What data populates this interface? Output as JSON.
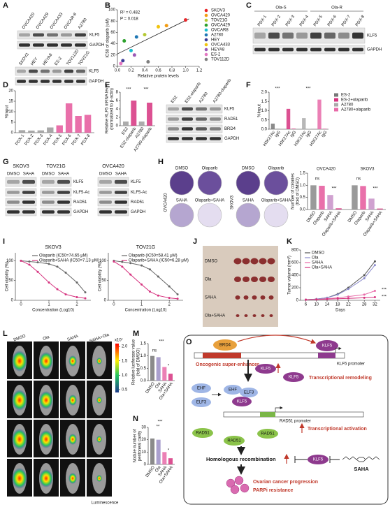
{
  "panels": {
    "A": {
      "label": "A",
      "blot1": {
        "lanes": [
          "OVCA420",
          "OVCA429",
          "OVCA433",
          "OVCAR-8",
          "A2780"
        ],
        "rows": [
          "KLF5",
          "GAPDH"
        ]
      },
      "blot2": {
        "lanes": [
          "SKOV3",
          "HEY",
          "HEYA8",
          "ES-2",
          "TOV112D",
          "TOV21G"
        ],
        "rows": [
          "KLF5",
          "GAPDH"
        ]
      }
    },
    "B": {
      "label": "B",
      "chart": {
        "type": "scatter",
        "ylabel": [
          "IC50 of olaparib (uM)"
        ],
        "xlabel": "Relative protein levels",
        "annotations": [
          "R² = 0.482",
          "P = 0.018"
        ],
        "xlim": [
          0,
          1.2
        ],
        "xticks": [
          {
            "value": 0,
            "label": "0.0"
          },
          0.2,
          0.4,
          0.6,
          0.8,
          {
            "value": 1,
            "label": "1.0"
          },
          1.2
        ],
        "ylim": [
          0,
          100
        ],
        "yticks": [
          0,
          20,
          40,
          60,
          80,
          100
        ],
        "legend": true,
        "trendline": {
          "x": [
            0,
            1.05
          ],
          "y": [
            22,
            84
          ]
        },
        "series": [
          {
            "name": "SKOV3",
            "color": "#e8262a",
            "x": 1.0,
            "y": 82
          },
          {
            "name": "OVCA420",
            "color": "#f39c12",
            "x": 0.72,
            "y": 72
          },
          {
            "name": "TOV21G",
            "color": "#b5c934",
            "x": 0.4,
            "y": 56
          },
          {
            "name": "OVCA429",
            "color": "#2ca02c",
            "x": 0.1,
            "y": 45
          },
          {
            "name": "OVCAR8",
            "color": "#17becf",
            "x": 0.2,
            "y": 28
          },
          {
            "name": "A2780",
            "color": "#1f77b4",
            "x": 0.28,
            "y": 52
          },
          {
            "name": "HEY",
            "color": "#3b3b98",
            "x": 0.08,
            "y": 10
          },
          {
            "name": "OVCA433",
            "color": "#f1c40f",
            "x": 0.6,
            "y": 70
          },
          {
            "name": "HEYA8",
            "color": "#9b59b6",
            "x": 0.25,
            "y": 20
          },
          {
            "name": "ES-2",
            "color": "#e377c2",
            "x": 0.05,
            "y": 5
          },
          {
            "name": "TOV112D",
            "color": "#7f7f7f",
            "x": 0.45,
            "y": 8
          }
        ]
      }
    },
    "C": {
      "label": "C",
      "groups": [
        "Ola-S",
        "Ola-R"
      ],
      "lanes": [
        "PDX-1",
        "PDX-2",
        "PDX-3",
        "PDX-4",
        "PDX-5",
        "PDX-6",
        "PDX-7",
        "PDX-8"
      ],
      "rows": [
        "KLF5",
        "GAPDH"
      ]
    },
    "D": {
      "label": "D",
      "chart": {
        "type": "bar",
        "ylabel": [
          "%Input"
        ],
        "categories": [
          "PDX-1",
          "PDX-2",
          "PDX-3",
          "PDX-4",
          "PDX-5",
          "PDX-6",
          "PDX-7",
          "PDX-8"
        ],
        "values": [
          1.2,
          1.0,
          1.1,
          2.5,
          3.5,
          14,
          8,
          8.5
        ],
        "colors": [
          "#999999",
          "#999999",
          "#999999",
          "#999999",
          "#e5579b",
          "#e5579b",
          "#e5579b",
          "#e5579b"
        ],
        "ylim": [
          0,
          20
        ],
        "yticks": [
          0,
          5,
          10,
          15,
          20
        ]
      }
    },
    "E": {
      "label": "E",
      "chart": {
        "type": "bar",
        "ylabel": [
          "Relative KLF5 mRNA level",
          "(normalized to β-actin)"
        ],
        "categories": [
          "ES2",
          "ES2-olaparib",
          "A2780",
          "A2780-olaparib"
        ],
        "values": [
          1,
          6,
          1,
          5.5
        ],
        "colors": [
          "#9e9e9e",
          "#d6337f",
          "#9e9e9e",
          "#d6337f"
        ],
        "ylim": [
          0,
          8
        ],
        "yticks": [
          0,
          2,
          4,
          6,
          8
        ],
        "annotations": [
          "***",
          "***"
        ]
      },
      "blot": {
        "lanes": [
          "ES2",
          "ES2-olaparib",
          "A2780",
          "A2780-olaparib"
        ],
        "rows": [
          "KLF5",
          "RAD51",
          "BRD4",
          "GAPDH"
        ]
      }
    },
    "F": {
      "label": "F",
      "chart": {
        "type": "bar",
        "legend": true,
        "ylabel": [
          "%Input"
        ],
        "categories": [
          "H3K27Ac",
          "IgG"
        ],
        "series": [
          {
            "name": "ES-2",
            "color": "#777777",
            "values": [
              0.3,
              0.02
            ]
          },
          {
            "name": "ES-2+olaparib",
            "color": "#d6337f",
            "values": [
              1.1,
              0.03
            ]
          },
          {
            "name": "A2780",
            "color": "#aaaaaa",
            "values": [
              0.6,
              0.02
            ]
          },
          {
            "name": "A2780+olaparib",
            "color": "#e86aa8",
            "values": [
              1.6,
              0.03
            ]
          }
        ],
        "ylim": [
          0,
          2
        ],
        "yticks": [
          {
            "value": 0,
            "label": "0.0"
          },
          0.5,
          {
            "value": 1,
            "label": "1.0"
          },
          1.5,
          {
            "value": 2,
            "label": "2.0"
          }
        ],
        "annotations": [
          "***",
          "***"
        ]
      }
    },
    "G": {
      "label": "G",
      "blots": [
        {
          "title": "SKOV3",
          "lanes": [
            "DMSO",
            "SAHA"
          ]
        },
        {
          "title": "TOV21G",
          "lanes": [
            "DMSO",
            "SAHA"
          ]
        },
        {
          "title": "OVCA420",
          "lanes": [
            "DMSO",
            "SAHA"
          ]
        }
      ],
      "rows": [
        "KLF5",
        "KLF5-Ac",
        "RAD51",
        "GAPDH"
      ]
    },
    "H": {
      "label": "H",
      "cell_lines": [
        "OVCA420",
        "SKOV3"
      ],
      "treatments": [
        "DMSO",
        "Olaparib",
        "SAHA",
        "Olaparib+SAHA"
      ],
      "chart": {
        "type": "bar",
        "ylabel": [
          "Number of colonies",
          "(fold of DMSO)"
        ],
        "categories": [
          "DMSO",
          "Olaparib",
          "SAHA",
          "Olaparib+SAHA"
        ],
        "series": [
          {
            "name": "OVCA420",
            "values": [
              1,
              0.98,
              0.6,
              0.05
            ]
          },
          {
            "name": "SKOV3",
            "values": [
              1,
              0.97,
              0.45,
              0.04
            ]
          }
        ],
        "colors": [
          "#888888",
          "#e5579b",
          "#c890c8",
          "#d6337f"
        ],
        "ylim": [
          0,
          1.5
        ],
        "yticks": [
          {
            "value": 0,
            "label": "0.0"
          },
          0.5,
          {
            "value": 1,
            "label": "1.0"
          },
          1.5
        ],
        "annotations": [
          "ns",
          "***",
          "ns",
          "***"
        ]
      }
    },
    "I": {
      "label": "I",
      "charts": [
        {
          "type": "line",
          "title": "SKOV3",
          "legend": true,
          "ylabel": [
            "Cell viability (%)"
          ],
          "xlabel": "Concentration (Log10)",
          "x": [
            0,
            0.3,
            0.6,
            1,
            1.3,
            1.6,
            2,
            2.3
          ],
          "xlim": [
            -0.2,
            2.5
          ],
          "xticks": [
            0,
            1,
            2
          ],
          "ylim": [
            0,
            120
          ],
          "yticks": [
            0,
            50,
            100
          ],
          "series": [
            {
              "name": "Olaparib (IC50=74.65 μM)",
              "color": "#666666",
              "values": [
                100,
                98,
                96,
                92,
                85,
                70,
                45,
                20
              ]
            },
            {
              "name": "Olaparib+SAHA (IC50=7.13 μM)",
              "color": "#d6337f",
              "values": [
                100,
                90,
                72,
                45,
                28,
                15,
                8,
                5
              ]
            }
          ]
        },
        {
          "type": "line",
          "title": "TOV21G",
          "legend": true,
          "ylabel": [
            "Cell viability (%)"
          ],
          "xlabel": "Concentration (Log10)",
          "x": [
            0,
            0.3,
            0.6,
            1,
            1.3,
            1.6,
            2,
            2.3
          ],
          "xlim": [
            -0.2,
            2.5
          ],
          "xticks": [
            0,
            1,
            2
          ],
          "ylim": [
            0,
            120
          ],
          "yticks": [
            0,
            50,
            100
          ],
          "series": [
            {
              "name": "Olaparib (IC50=58.41 μM)",
              "color": "#666666",
              "values": [
                100,
                97,
                94,
                88,
                78,
                60,
                35,
                15
              ]
            },
            {
              "name": "Olaparib+SAHA (IC50=6.28 μM)",
              "color": "#d6337f",
              "values": [
                98,
                85,
                65,
                40,
                22,
                12,
                6,
                4
              ]
            }
          ]
        }
      ]
    },
    "J": {
      "label": "J",
      "groups": [
        "DMSO",
        "Ola",
        "SAHA",
        "Ola+SAHA"
      ]
    },
    "K": {
      "label": "K",
      "chart": {
        "type": "line",
        "legend": true,
        "ylabel": [
          "Tumor volume (mm³)"
        ],
        "xlabel": "Days",
        "x": [
          6,
          10,
          14,
          18,
          22,
          28,
          32
        ],
        "xlim": [
          4,
          34
        ],
        "xticks": [
          6,
          10,
          14,
          18,
          22,
          28,
          32
        ],
        "ylim": [
          0,
          800
        ],
        "yticks": [
          0,
          200,
          400,
          600,
          800
        ],
        "series": [
          {
            "name": "DMSO",
            "color": "#555555",
            "values": [
              10,
              20,
              40,
              100,
              200,
              400,
              620
            ]
          },
          {
            "name": "Ola",
            "color": "#8a8acb",
            "values": [
              10,
              20,
              40,
              90,
              180,
              350,
              560
            ]
          },
          {
            "name": "SAHA",
            "color": "#e86aa8",
            "values": [
              10,
              15,
              25,
              40,
              60,
              90,
              150
            ]
          },
          {
            "name": "Ola+SAHA",
            "color": "#d6337f",
            "values": [
              10,
              12,
              18,
              25,
              30,
              40,
              50
            ]
          }
        ],
        "annotations": [
          "***",
          "***"
        ]
      }
    },
    "L": {
      "label": "L",
      "columns": [
        "DMSO",
        "Ola",
        "SAHA",
        "SAHA+Ola"
      ],
      "colorbar": {
        "unit": "x10⁷",
        "lim": [
          0.4,
          2.1
        ],
        "ticks": [
          {
            "value": 2,
            "label": "2.0"
          },
          1.5,
          {
            "value": 1,
            "label": "1.0"
          },
          0.5
        ],
        "label": "Luminescence"
      }
    },
    "M": {
      "label": "M",
      "chart": {
        "type": "bar",
        "ylabel": [
          "Relative luciferase value",
          "(fold of DMSO)"
        ],
        "categories": [
          "DMSO",
          "Ola",
          "SAHA",
          "Ola+SAHA"
        ],
        "values": [
          1,
          0.95,
          0.55,
          0.28
        ],
        "colors": [
          "#777777",
          "#9b8fc6",
          "#e86aa8",
          "#d6337f"
        ],
        "ylim": [
          0,
          1.5
        ],
        "yticks": [
          {
            "value": 0,
            "label": "0.0"
          },
          0.5,
          {
            "value": 1,
            "label": "1.0"
          },
          1.5
        ],
        "annotations": [
          "***",
          "ns",
          "*"
        ]
      }
    },
    "N": {
      "label": "N",
      "chart": {
        "type": "bar",
        "ylabel": [
          "Nodule number of",
          "peritoneal cavity"
        ],
        "categories": [
          "DMSO",
          "Ola",
          "SAHA",
          "Ola+SAHA"
        ],
        "values": [
          21,
          20,
          10,
          5
        ],
        "colors": [
          "#777777",
          "#9b8fc6",
          "#e86aa8",
          "#d6337f"
        ],
        "ylim": [
          0,
          30
        ],
        "yticks": [
          0,
          10,
          20,
          30
        ],
        "annotations": [
          "***",
          "**",
          "*"
        ]
      }
    },
    "O": {
      "label": "O",
      "brd4": "BRD4",
      "klf5": "KLF5",
      "enhancer": "Oncogenic super-enhancer",
      "klf5_promoter": "KLF5 promoter",
      "remodeling": "Transcriptional remodeling",
      "ehf": "EHF",
      "elf3": "ELF3",
      "rad51_promoter": "RAD51 promoter",
      "activation": "Transcriptional activation",
      "rad51": "RAD51",
      "hr": "Homologous recombination",
      "saha": "SAHA",
      "outcome": [
        "Ovarian cancer progression",
        "PARPi resistance"
      ]
    }
  }
}
